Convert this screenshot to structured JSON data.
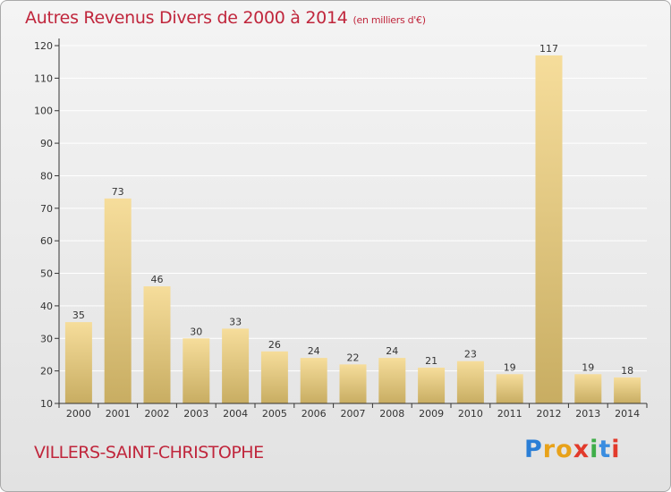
{
  "title": "Autres Revenus Divers de 2000 à 2014",
  "title_unit": "(en milliers d'€)",
  "commune": "VILLERS-SAINT-CHRISTOPHE",
  "logo_text": "Proxiti",
  "colors": {
    "title": "#c0263c",
    "bar_top": "#f6dd9b",
    "bar_bottom": "#c8ad62",
    "axis": "#333333",
    "grid": "#ffffff"
  },
  "chart_data": {
    "type": "bar",
    "title": "Autres Revenus Divers de 2000 à 2014",
    "subtitle": "(en milliers d'€)",
    "xlabel": "",
    "ylabel": "",
    "categories": [
      "2000",
      "2001",
      "2002",
      "2003",
      "2004",
      "2005",
      "2006",
      "2007",
      "2008",
      "2009",
      "2010",
      "2011",
      "2012",
      "2013",
      "2014"
    ],
    "values": [
      35,
      73,
      46,
      30,
      33,
      26,
      24,
      22,
      24,
      21,
      23,
      19,
      117,
      19,
      18
    ],
    "ylim": [
      10,
      120
    ],
    "yticks": [
      10,
      20,
      30,
      40,
      50,
      60,
      70,
      80,
      90,
      100,
      110,
      120
    ],
    "grid": true,
    "legend": "none"
  }
}
